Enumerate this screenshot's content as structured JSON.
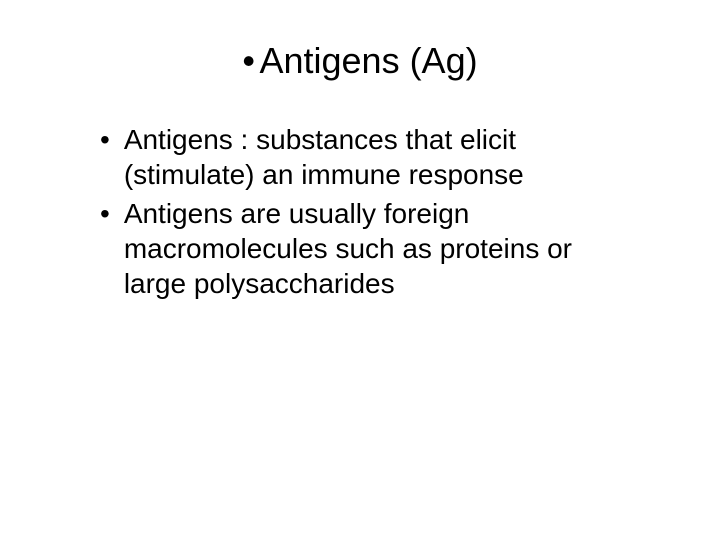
{
  "slide": {
    "title_bullet": "•",
    "title": "Antigens (Ag)",
    "bullets": [
      {
        "dot": "•",
        "text": "Antigens : substances that elicit (stimulate) an immune response"
      },
      {
        "dot": "•",
        "text": "Antigens are usually foreign macromolecules such as proteins or large polysaccharides"
      }
    ]
  },
  "styling": {
    "background_color": "#ffffff",
    "text_color": "#000000",
    "title_fontsize": 36,
    "body_fontsize": 28,
    "font_family": "Arial"
  }
}
